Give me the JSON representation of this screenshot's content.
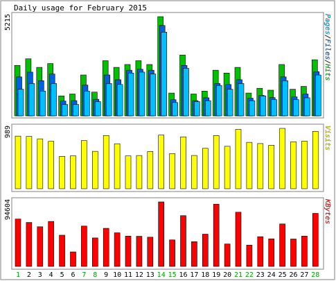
{
  "chart_data": {
    "type": "bar",
    "title": "Daily usage for February 2015",
    "days": [
      "1",
      "2",
      "3",
      "4",
      "5",
      "6",
      "7",
      "8",
      "9",
      "10",
      "11",
      "12",
      "13",
      "14",
      "15",
      "16",
      "17",
      "18",
      "19",
      "20",
      "21",
      "22",
      "23",
      "24",
      "25",
      "26",
      "27",
      "28"
    ],
    "weekend_days": [
      "1",
      "7",
      "8",
      "14",
      "15",
      "21",
      "22",
      "28"
    ],
    "panels": [
      {
        "id": "hits",
        "max_label": "5215",
        "ymax": 5215,
        "side_label_parts": [
          "Pages",
          "/",
          "Files",
          "/",
          "Hits"
        ],
        "series": [
          {
            "name": "Hits",
            "color": "#00c000",
            "values": [
              2650,
              3000,
              2550,
              2750,
              1050,
              1150,
              2150,
              1250,
              2900,
              2550,
              2700,
              2900,
              2700,
              5215,
              1200,
              3200,
              1150,
              1300,
              2400,
              2250,
              2550,
              1200,
              1450,
              1350,
              2700,
              1400,
              1550,
              2950
            ]
          },
          {
            "name": "Files",
            "color": "#0060e0",
            "values": [
              2050,
              2300,
              1850,
              2200,
              780,
              800,
              1620,
              870,
              2150,
              1900,
              2400,
              2450,
              2400,
              4750,
              850,
              2650,
              800,
              950,
              1700,
              1650,
              1900,
              930,
              1080,
              960,
              2050,
              1000,
              1150,
              2320
            ]
          },
          {
            "name": "Pages",
            "color": "#00c0ff",
            "values": [
              1400,
              1700,
              1300,
              1700,
              600,
              600,
              1300,
              750,
              1700,
              1650,
              2250,
              2300,
              2200,
              4400,
              700,
              2500,
              750,
              800,
              1600,
              1400,
              1700,
              800,
              1050,
              850,
              1850,
              850,
              950,
              2150
            ]
          }
        ]
      },
      {
        "id": "visits",
        "max_label": "989",
        "ymax": 989,
        "side_label_parts": [
          "Visits"
        ],
        "series": [
          {
            "name": "Visits",
            "color": "#ffff00",
            "values": [
              862,
              857,
              817,
              777,
              530,
              540,
              790,
              612,
              872,
              737,
              538,
              544,
              610,
              880,
              575,
              850,
              545,
              662,
              872,
              695,
              973,
              760,
              740,
              712,
              989,
              770,
              780,
              940
            ]
          }
        ]
      },
      {
        "id": "kbytes",
        "max_label": "94604",
        "ymax": 94604,
        "side_label_parts": [
          "KBytes"
        ],
        "series": [
          {
            "name": "KBytes",
            "color": "#ff0000",
            "values": [
              69500,
              64500,
              58200,
              66000,
              45800,
              21300,
              59200,
              41800,
              55900,
              49300,
              44500,
              44200,
              42900,
              94604,
              38900,
              74500,
              36300,
              47300,
              91300,
              32900,
              79500,
              31300,
              43600,
              40500,
              62300,
              40200,
              44500,
              77800
            ]
          }
        ]
      }
    ],
    "colors": {
      "hits": "#00c000",
      "files": "#0060e0",
      "pages": "#00c0ff",
      "visits": "#ffff00",
      "kbytes": "#ff0000",
      "weekday_label": "#000000",
      "weekend_label": "#00a000",
      "frame_border": "#808080"
    }
  }
}
